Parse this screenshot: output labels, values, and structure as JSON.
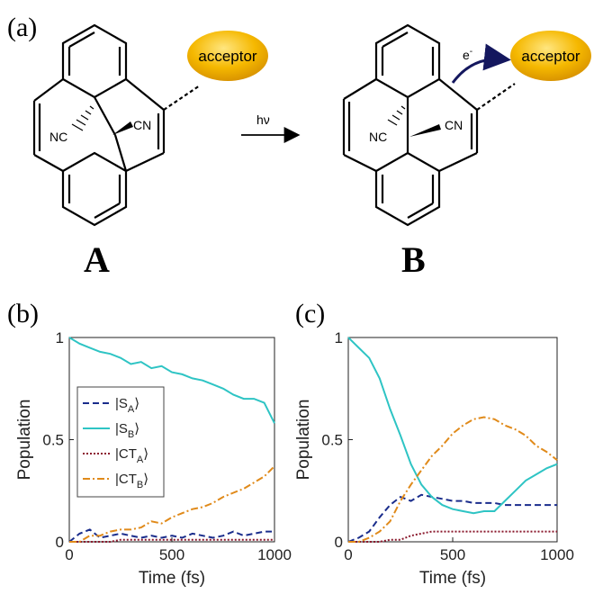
{
  "panels": {
    "a": "(a)",
    "b": "(b)",
    "c": "(c)"
  },
  "scheme": {
    "molecule_a": "A",
    "molecule_b": "B",
    "acceptor": "acceptor",
    "reaction_label": "hν",
    "electron": "e",
    "electron_sup": "-",
    "nc": "NC",
    "cn": "CN",
    "acceptor_color": "#f5b800"
  },
  "legend": [
    {
      "main": "|S",
      "sub": "A",
      "close": "⟩"
    },
    {
      "main": "|S",
      "sub": "B",
      "close": "⟩"
    },
    {
      "main": "|CT",
      "sub": "A",
      "close": "⟩"
    },
    {
      "main": "|CT",
      "sub": "B",
      "close": "⟩"
    }
  ],
  "colors": {
    "S_A": "#1a2d8c",
    "S_B": "#2ec4c4",
    "CT_A": "#8b1a2e",
    "CT_B": "#e08a1a"
  },
  "chart_data": [
    {
      "type": "line",
      "panel": "(b)",
      "xlabel": "Time (fs)",
      "ylabel": "Population",
      "xlim": [
        0,
        1000
      ],
      "ylim": [
        0,
        1
      ],
      "xticks": [
        "0",
        "500",
        "1000"
      ],
      "yticks": [
        "0",
        "0.5",
        "1"
      ],
      "x": [
        0,
        50,
        100,
        150,
        200,
        250,
        300,
        350,
        400,
        450,
        500,
        550,
        600,
        650,
        700,
        750,
        800,
        850,
        900,
        950,
        1000
      ],
      "series": [
        {
          "name": "|SA⟩",
          "values": [
            0,
            0.04,
            0.06,
            0.02,
            0.03,
            0.04,
            0.03,
            0.02,
            0.03,
            0.02,
            0.03,
            0.02,
            0.04,
            0.03,
            0.02,
            0.03,
            0.05,
            0.03,
            0.04,
            0.05,
            0.05
          ]
        },
        {
          "name": "|SB⟩",
          "values": [
            1.0,
            0.97,
            0.95,
            0.93,
            0.92,
            0.9,
            0.87,
            0.88,
            0.85,
            0.86,
            0.83,
            0.82,
            0.8,
            0.79,
            0.77,
            0.75,
            0.72,
            0.7,
            0.7,
            0.68,
            0.58
          ]
        },
        {
          "name": "|CTA⟩",
          "values": [
            0,
            0,
            0,
            0,
            0,
            0.01,
            0.01,
            0.01,
            0.01,
            0.01,
            0.01,
            0.01,
            0.01,
            0.01,
            0.01,
            0.01,
            0.01,
            0.01,
            0.01,
            0.01,
            0.01
          ]
        },
        {
          "name": "|CTB⟩",
          "values": [
            0,
            0,
            0.03,
            0.03,
            0.05,
            0.06,
            0.06,
            0.07,
            0.1,
            0.09,
            0.12,
            0.14,
            0.16,
            0.17,
            0.19,
            0.22,
            0.24,
            0.26,
            0.29,
            0.32,
            0.37
          ]
        }
      ],
      "legend_position": "middle-left"
    },
    {
      "type": "line",
      "panel": "(c)",
      "xlabel": "Time (fs)",
      "ylabel": "Population",
      "xlim": [
        0,
        1000
      ],
      "ylim": [
        0,
        1
      ],
      "xticks": [
        "0",
        "500",
        "1000"
      ],
      "yticks": [
        "0",
        "0.5",
        "1"
      ],
      "x": [
        0,
        50,
        100,
        150,
        200,
        250,
        300,
        350,
        400,
        450,
        500,
        550,
        600,
        650,
        700,
        750,
        800,
        850,
        900,
        950,
        1000
      ],
      "series": [
        {
          "name": "|SA⟩",
          "values": [
            0,
            0.02,
            0.05,
            0.12,
            0.18,
            0.22,
            0.2,
            0.23,
            0.22,
            0.21,
            0.2,
            0.2,
            0.19,
            0.19,
            0.19,
            0.18,
            0.18,
            0.18,
            0.18,
            0.18,
            0.18
          ]
        },
        {
          "name": "|SB⟩",
          "values": [
            1.0,
            0.95,
            0.9,
            0.8,
            0.65,
            0.52,
            0.38,
            0.28,
            0.22,
            0.18,
            0.16,
            0.15,
            0.14,
            0.15,
            0.15,
            0.2,
            0.25,
            0.3,
            0.33,
            0.36,
            0.38
          ]
        },
        {
          "name": "|CTA⟩",
          "values": [
            0,
            0,
            0,
            0,
            0.01,
            0.01,
            0.03,
            0.04,
            0.05,
            0.05,
            0.05,
            0.05,
            0.05,
            0.05,
            0.05,
            0.05,
            0.05,
            0.05,
            0.05,
            0.05,
            0.05
          ]
        },
        {
          "name": "|CTB⟩",
          "values": [
            0,
            0,
            0.02,
            0.05,
            0.1,
            0.2,
            0.28,
            0.35,
            0.42,
            0.47,
            0.53,
            0.57,
            0.6,
            0.61,
            0.6,
            0.57,
            0.55,
            0.52,
            0.47,
            0.44,
            0.4
          ]
        }
      ]
    }
  ]
}
